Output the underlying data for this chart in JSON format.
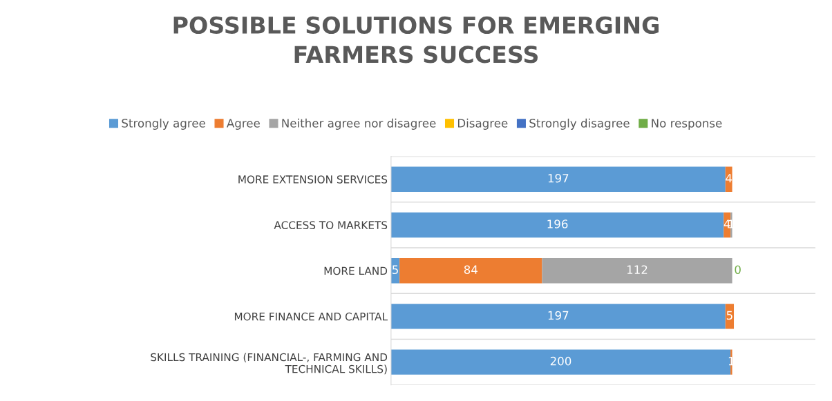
{
  "chart_data": {
    "type": "bar",
    "orientation": "horizontal",
    "stacked": true,
    "title": "POSSIBLE SOLUTIONS FOR EMERGING\nFARMERS SUCCESS",
    "categories": [
      "MORE EXTENSION SERVICES",
      "ACCESS TO MARKETS",
      "MORE LAND",
      "MORE FINANCE AND CAPITAL",
      "SKILLS TRAINING (FINANCIAL-, FARMING AND\nTECHNICAL SKILLS)"
    ],
    "series": [
      {
        "name": "Strongly agree",
        "color": "#5b9bd5",
        "values": [
          197,
          196,
          5,
          197,
          200
        ]
      },
      {
        "name": "Agree",
        "color": "#ed7d31",
        "values": [
          4,
          4,
          84,
          5,
          1
        ]
      },
      {
        "name": "Neither agree nor disagree",
        "color": "#a5a5a5",
        "values": [
          null,
          1,
          112,
          null,
          null
        ]
      },
      {
        "name": "Disagree",
        "color": "#ffc000",
        "values": [
          null,
          null,
          null,
          null,
          null
        ]
      },
      {
        "name": "Strongly disagree",
        "color": "#4472c4",
        "values": [
          null,
          null,
          null,
          null,
          null
        ]
      },
      {
        "name": "No response",
        "color": "#70ad47",
        "values": [
          null,
          null,
          0,
          null,
          null
        ]
      }
    ],
    "xlim": [
      0,
      250
    ],
    "tick_labels": "y",
    "data_labels": true,
    "legend": "top",
    "grid": "y"
  }
}
